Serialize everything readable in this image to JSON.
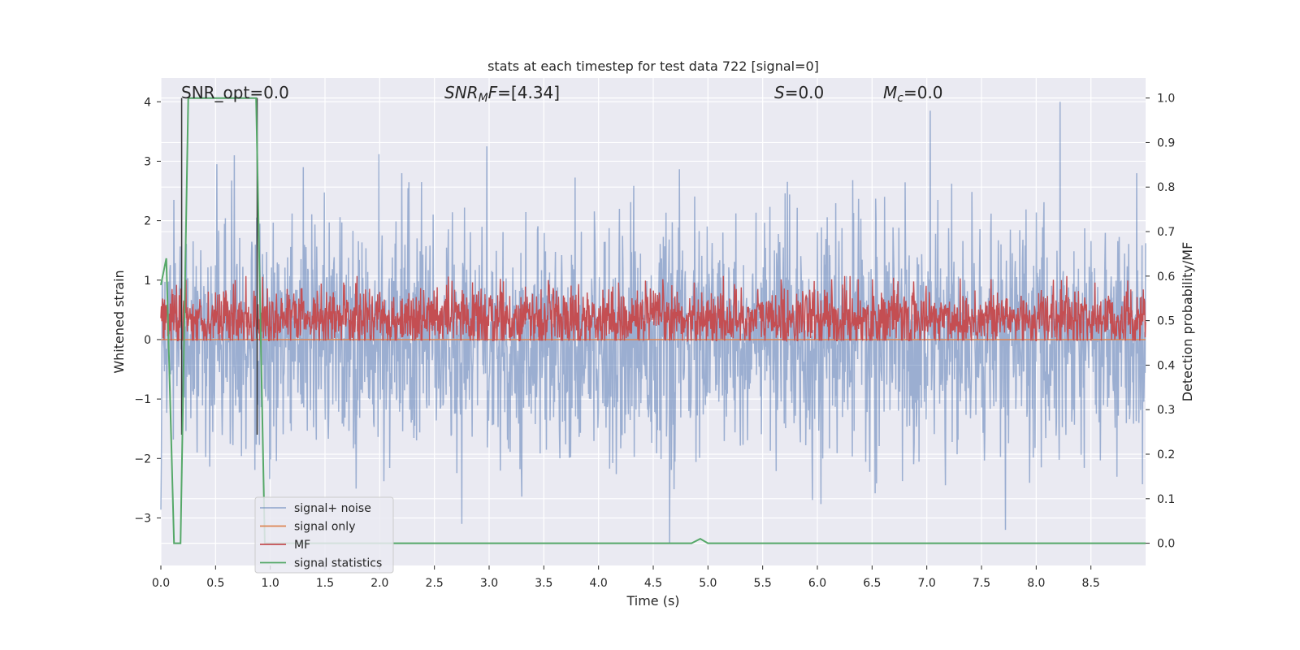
{
  "chart_data": {
    "type": "line",
    "title": "stats at each timestep for test data 722 [signal=0]",
    "xlabel": "Time (s)",
    "ylabel_left": "Whitened strain",
    "ylabel_right": "Detection probability/MF",
    "xlim": [
      0.0,
      9.0
    ],
    "ylim_left": [
      -3.8,
      4.4
    ],
    "ylim_right": [
      -0.05,
      1.045
    ],
    "x_ticks": [
      "0.0",
      "0.5",
      "1.0",
      "1.5",
      "2.0",
      "2.5",
      "3.0",
      "3.5",
      "4.0",
      "4.5",
      "5.0",
      "5.5",
      "6.0",
      "6.5",
      "7.0",
      "7.5",
      "8.0",
      "8.5"
    ],
    "y_left_ticks": [
      "−3",
      "−2",
      "−1",
      "0",
      "1",
      "2",
      "3",
      "4"
    ],
    "y_right_ticks": [
      "0.0",
      "0.1",
      "0.2",
      "0.3",
      "0.4",
      "0.5",
      "0.6",
      "0.7",
      "0.8",
      "0.9",
      "1.0"
    ],
    "grid": true,
    "legend_position": "lower-left",
    "annotations": [
      {
        "id": "snr_opt",
        "text": "SNR_opt=0.0"
      },
      {
        "id": "snr_mf",
        "text": "SNR_MF=[4.34]"
      },
      {
        "id": "spin",
        "text": "S=0.0"
      },
      {
        "id": "chirp_mass",
        "text": "M_c=0.0"
      }
    ],
    "marker_lines_x": [
      0.19,
      0.88
    ],
    "series": [
      {
        "name": "signal+ noise",
        "axis": "left",
        "color": "#4c72b0",
        "opacity": 0.5,
        "generated_noise": {
          "std": 0.95,
          "min": -3.45,
          "max": 4.0,
          "samples": 2200
        },
        "peaks": [
          {
            "x": 0.12,
            "y": 2.35
          },
          {
            "x": 0.51,
            "y": 2.95
          },
          {
            "x": 0.67,
            "y": 3.1
          },
          {
            "x": 1.3,
            "y": 2.9
          },
          {
            "x": 2.2,
            "y": 2.8
          },
          {
            "x": 2.75,
            "y": -3.1
          },
          {
            "x": 2.98,
            "y": 3.25
          },
          {
            "x": 4.65,
            "y": -3.42
          },
          {
            "x": 7.03,
            "y": 3.85
          },
          {
            "x": 7.72,
            "y": -3.2
          },
          {
            "x": 8.22,
            "y": 4.0
          },
          {
            "x": 8.92,
            "y": 2.8
          }
        ]
      },
      {
        "name": "signal only",
        "axis": "left",
        "color": "#dd8452",
        "x": [
          0.0,
          9.0
        ],
        "y": [
          0.0,
          0.0
        ]
      },
      {
        "name": "MF",
        "axis": "right",
        "color": "#c44e52",
        "generated_noise": {
          "mean": 0.505,
          "std": 0.035,
          "min": 0.455,
          "max": 0.6,
          "samples": 2200
        }
      },
      {
        "name": "signal statistics",
        "axis": "right",
        "color": "#55a868",
        "x": [
          0.0,
          0.05,
          0.12,
          0.18,
          0.25,
          0.87,
          0.95,
          1.0,
          4.85,
          4.93,
          5.0,
          9.0
        ],
        "y": [
          0.58,
          0.64,
          0.0,
          0.0,
          1.0,
          1.0,
          0.0,
          0.0,
          0.0,
          0.01,
          0.0,
          0.0
        ]
      }
    ]
  }
}
